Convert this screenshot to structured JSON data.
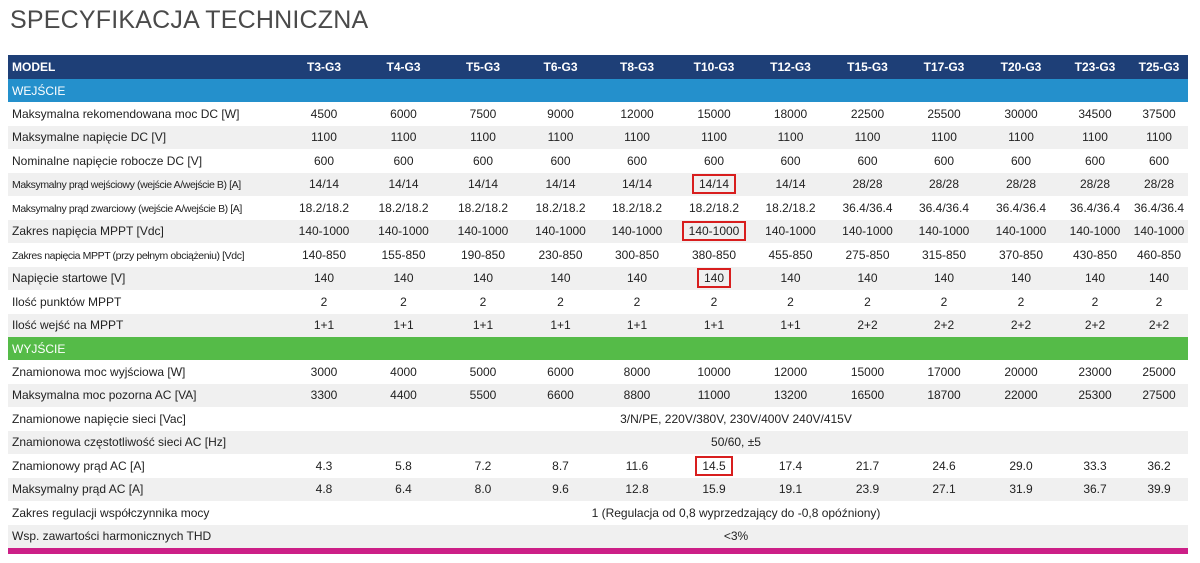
{
  "title": "SPECYFIKACJA TECHNICZNA",
  "colors": {
    "header": "#1e3f77",
    "section_wejscie": "#2490cc",
    "section_wyjscie": "#55bb48",
    "section_next": "#cc1f87",
    "highlight_border": "#d81e1e",
    "row_alt": "#f0f0f0"
  },
  "header": {
    "label": "MODEL",
    "models": [
      "T3-G3",
      "T4-G3",
      "T5-G3",
      "T6-G3",
      "T8-G3",
      "T10-G3",
      "T12-G3",
      "T15-G3",
      "T17-G3",
      "T20-G3",
      "T23-G3",
      "T25-G3"
    ]
  },
  "sections": {
    "wejscie": "WEJŚCIE",
    "wyjscie": "WYJŚCIE"
  },
  "input_rows": [
    {
      "label": "Maksymalna rekomendowana moc DC [W]",
      "values": [
        "4500",
        "6000",
        "7500",
        "9000",
        "12000",
        "15000",
        "18000",
        "22500",
        "25500",
        "30000",
        "34500",
        "37500"
      ]
    },
    {
      "label": "Maksymalne napięcie DC [V]",
      "values": [
        "1100",
        "1100",
        "1100",
        "1100",
        "1100",
        "1100",
        "1100",
        "1100",
        "1100",
        "1100",
        "1100",
        "1100"
      ]
    },
    {
      "label": "Nominalne napięcie robocze DC [V]",
      "values": [
        "600",
        "600",
        "600",
        "600",
        "600",
        "600",
        "600",
        "600",
        "600",
        "600",
        "600",
        "600"
      ]
    },
    {
      "label": "Maksymalny prąd wejściowy (wejście A/wejście B) [A]",
      "values": [
        "14/14",
        "14/14",
        "14/14",
        "14/14",
        "14/14",
        "14/14",
        "14/14",
        "28/28",
        "28/28",
        "28/28",
        "28/28",
        "28/28"
      ]
    },
    {
      "label": "Maksymalny prąd zwarciowy (wejście A/wejście B) [A]",
      "values": [
        "18.2/18.2",
        "18.2/18.2",
        "18.2/18.2",
        "18.2/18.2",
        "18.2/18.2",
        "18.2/18.2",
        "18.2/18.2",
        "36.4/36.4",
        "36.4/36.4",
        "36.4/36.4",
        "36.4/36.4",
        "36.4/36.4"
      ]
    },
    {
      "label": "Zakres napięcia MPPT [Vdc]",
      "values": [
        "140-1000",
        "140-1000",
        "140-1000",
        "140-1000",
        "140-1000",
        "140-1000",
        "140-1000",
        "140-1000",
        "140-1000",
        "140-1000",
        "140-1000",
        "140-1000"
      ]
    },
    {
      "label": "Zakres napięcia MPPT (przy pełnym obciążeniu) [Vdc]",
      "values": [
        "140-850",
        "155-850",
        "190-850",
        "230-850",
        "300-850",
        "380-850",
        "455-850",
        "275-850",
        "315-850",
        "370-850",
        "430-850",
        "460-850"
      ]
    },
    {
      "label": "Napięcie startowe [V]",
      "values": [
        "140",
        "140",
        "140",
        "140",
        "140",
        "140",
        "140",
        "140",
        "140",
        "140",
        "140",
        "140"
      ]
    },
    {
      "label": "Ilość punktów MPPT",
      "values": [
        "2",
        "2",
        "2",
        "2",
        "2",
        "2",
        "2",
        "2",
        "2",
        "2",
        "2",
        "2"
      ]
    },
    {
      "label": "Ilość wejść na MPPT",
      "values": [
        "1+1",
        "1+1",
        "1+1",
        "1+1",
        "1+1",
        "1+1",
        "1+1",
        "2+2",
        "2+2",
        "2+2",
        "2+2",
        "2+2"
      ]
    }
  ],
  "output_rows": [
    {
      "label": "Znamionowa moc wyjściowa [W]",
      "values": [
        "3000",
        "4000",
        "5000",
        "6000",
        "8000",
        "10000",
        "12000",
        "15000",
        "17000",
        "20000",
        "23000",
        "25000"
      ]
    },
    {
      "label": "Maksymalna moc pozorna AC [VA]",
      "values": [
        "3300",
        "4400",
        "5500",
        "6600",
        "8800",
        "11000",
        "13200",
        "16500",
        "18700",
        "22000",
        "25300",
        "27500"
      ]
    },
    {
      "label": "Znamionowe napięcie sieci [Vac]",
      "span": "3/N/PE, 220V/380V, 230V/400V 240V/415V"
    },
    {
      "label": "Znamionowa częstotliwość sieci AC [Hz]",
      "span": "50/60, ±5"
    },
    {
      "label": "Znamionowy prąd AC [A]",
      "values": [
        "4.3",
        "5.8",
        "7.2",
        "8.7",
        "11.6",
        "14.5",
        "17.4",
        "21.7",
        "24.6",
        "29.0",
        "33.3",
        "36.2"
      ]
    },
    {
      "label": "Maksymalny prąd AC [A]",
      "values": [
        "4.8",
        "6.4",
        "8.0",
        "9.6",
        "12.8",
        "15.9",
        "19.1",
        "23.9",
        "27.1",
        "31.9",
        "36.7",
        "39.9"
      ]
    },
    {
      "label": "Zakres regulacji współczynnika mocy",
      "span": "1 (Regulacja od 0,8 wyprzedzający do -0,8 opóźniony)"
    },
    {
      "label": "Wsp. zawartości harmonicznych THD",
      "span": "<3%"
    }
  ]
}
